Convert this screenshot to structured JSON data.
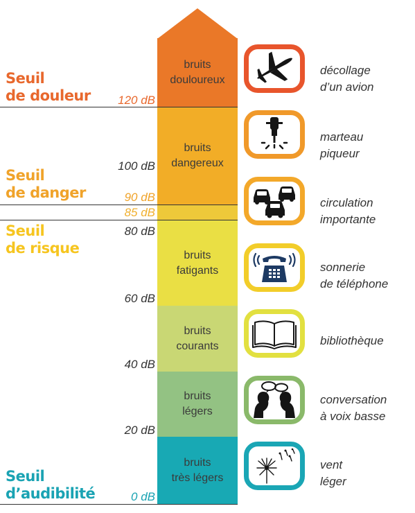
{
  "thresholds": [
    {
      "id": "douleur",
      "line1": "Seuil",
      "line2": "de douleur",
      "color": "#e8682d"
    },
    {
      "id": "danger",
      "line1": "Seuil",
      "line2": "de danger",
      "color": "#f0a32a"
    },
    {
      "id": "risque",
      "line1": "Seuil",
      "line2": "de risque",
      "color": "#f6c51f"
    },
    {
      "id": "audibilite",
      "line1": "Seuil",
      "line2": "d’audibilité",
      "color": "#1aa3b3"
    }
  ],
  "db_labels": [
    {
      "id": "120",
      "text": "120 dB",
      "color": "#e8682d"
    },
    {
      "id": "100",
      "text": "100 dB",
      "color": "#333333"
    },
    {
      "id": "90",
      "text": "90 dB",
      "color": "#f0a32a"
    },
    {
      "id": "85",
      "text": "85 dB",
      "color": "#f0b030"
    },
    {
      "id": "80",
      "text": "80 dB",
      "color": "#333333"
    },
    {
      "id": "60",
      "text": "60 dB",
      "color": "#333333"
    },
    {
      "id": "40",
      "text": "40 dB",
      "color": "#333333"
    },
    {
      "id": "20",
      "text": "20 dB",
      "color": "#333333"
    },
    {
      "id": "0",
      "text": "0 dB",
      "color": "#1aa3b3"
    }
  ],
  "bands": [
    {
      "id": "douloureux",
      "line1": "bruits",
      "line2": "douloureux",
      "color": "#ea7828"
    },
    {
      "id": "dangereux",
      "line1": "bruits",
      "line2": "dangereux",
      "color": "#f2ad27"
    },
    {
      "id": "fatigants",
      "line1": "bruits",
      "line2": "fatigants",
      "color": "#eadf44"
    },
    {
      "id": "courants",
      "line1": "bruits",
      "line2": "courants",
      "color": "#c9d774"
    },
    {
      "id": "legers",
      "line1": "bruits",
      "line2": "légers",
      "color": "#93c283"
    },
    {
      "id": "tres_legers",
      "line1": "bruits",
      "line2": "très légers",
      "color": "#18a9b4"
    }
  ],
  "sources": [
    {
      "id": "avion",
      "line1": "décollage",
      "line2": "d’un avion",
      "icon": "airplane-icon",
      "border": "#e8552c"
    },
    {
      "id": "marteau",
      "line1": "marteau",
      "line2": "piqueur",
      "icon": "jackhammer-icon",
      "border": "#f0992a"
    },
    {
      "id": "circulation",
      "line1": "circulation",
      "line2": "importante",
      "icon": "cars-icon",
      "border": "#f3a82a"
    },
    {
      "id": "telephone",
      "line1": "sonnerie",
      "line2": "de téléphone",
      "icon": "telephone-icon",
      "border": "#f2cd2a"
    },
    {
      "id": "bibliotheque",
      "line1": "bibliothèque",
      "line2": "",
      "icon": "book-icon",
      "border": "#e2e040"
    },
    {
      "id": "conversation",
      "line1": "conversation",
      "line2": "à voix basse",
      "icon": "conversation-icon",
      "border": "#8ab96a"
    },
    {
      "id": "vent",
      "line1": "vent",
      "line2": "léger",
      "icon": "dandelion-icon",
      "border": "#1aa6b5"
    }
  ]
}
